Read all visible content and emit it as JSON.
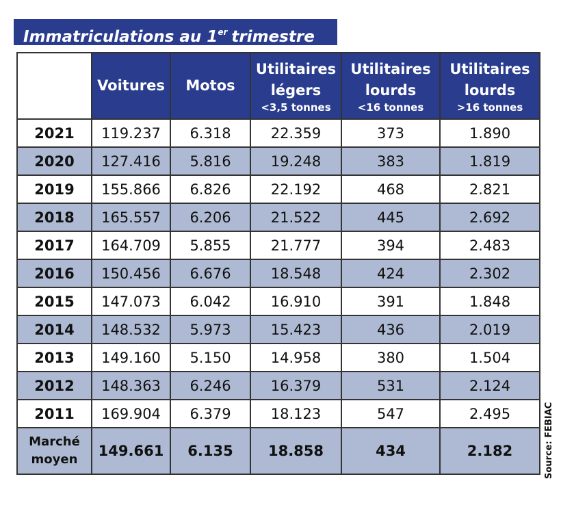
{
  "title": {
    "main": "Immatriculations au 1",
    "sup": "er",
    "rest": "trimestre"
  },
  "table": {
    "headers": [
      {
        "label": "Voitures"
      },
      {
        "label": "Motos"
      },
      {
        "label": "Utilitaires légers",
        "sub": "<3,5 tonnes"
      },
      {
        "label": "Utilitaires lourds",
        "sub": "<16 tonnes"
      },
      {
        "label": "Utilitaires lourds",
        "sub": ">16 tonnes"
      }
    ],
    "rows": [
      [
        "2021",
        "119.237",
        "6.318",
        "22.359",
        "373",
        "1.890"
      ],
      [
        "2020",
        "127.416",
        "5.816",
        "19.248",
        "383",
        "1.819"
      ],
      [
        "2019",
        "155.866",
        "6.826",
        "22.192",
        "468",
        "2.821"
      ],
      [
        "2018",
        "165.557",
        "6.206",
        "21.522",
        "445",
        "2.692"
      ],
      [
        "2017",
        "164.709",
        "5.855",
        "21.777",
        "394",
        "2.483"
      ],
      [
        "2016",
        "150.456",
        "6.676",
        "18.548",
        "424",
        "2.302"
      ],
      [
        "2015",
        "147.073",
        "6.042",
        "16.910",
        "391",
        "1.848"
      ],
      [
        "2014",
        "148.532",
        "5.973",
        "15.423",
        "436",
        "2.019"
      ],
      [
        "2013",
        "149.160",
        "5.150",
        "14.958",
        "380",
        "1.504"
      ],
      [
        "2012",
        "148.363",
        "6.246",
        "16.379",
        "531",
        "2.124"
      ],
      [
        "2011",
        "169.904",
        "6.379",
        "18.123",
        "547",
        "2.495"
      ]
    ],
    "average": [
      "Marché moyen",
      "149.661",
      "6.135",
      "18.858",
      "434",
      "2.182"
    ]
  },
  "source": "Source: FEBIAC"
}
